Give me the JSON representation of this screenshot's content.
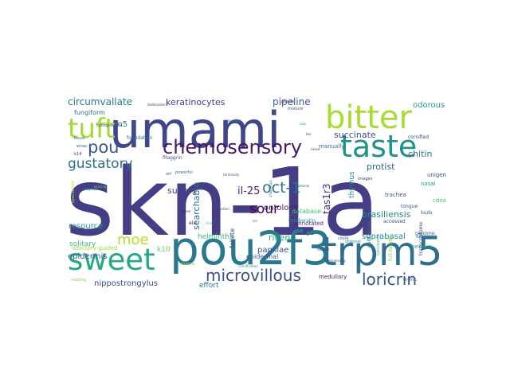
{
  "words": [
    {
      "text": "skn-1a",
      "color": "#433e85"
    },
    {
      "text": "umami",
      "color": "#3f4788"
    },
    {
      "text": "pou2f3",
      "color": "#2a788e"
    },
    {
      "text": "trpm5",
      "color": "#2e6f8e"
    },
    {
      "text": "bitter",
      "color": "#a8db34"
    },
    {
      "text": "taste",
      "color": "#21918c"
    },
    {
      "text": "sweet",
      "color": "#23a983"
    },
    {
      "text": "tuft",
      "color": "#a2da37"
    },
    {
      "text": "chemosensory",
      "color": "#481769"
    },
    {
      "text": "microvillous",
      "color": "#3c508b"
    },
    {
      "text": "pou",
      "color": "#39568c"
    },
    {
      "text": "loricrin",
      "color": "#3b528b"
    },
    {
      "text": "oct-1",
      "color": "#2c718e"
    },
    {
      "text": "sour",
      "color": "#440154"
    },
    {
      "text": "moe",
      "color": "#b5de2b"
    },
    {
      "text": "gustatory",
      "color": "#2d708e"
    },
    {
      "text": "keratinocytes",
      "color": "#433e85"
    },
    {
      "text": "circumvallate",
      "color": "#2a768e"
    },
    {
      "text": "pipeline",
      "color": "#365d8d"
    },
    {
      "text": "il-25",
      "color": "#481f70"
    },
    {
      "text": "tas1r3",
      "color": "#472d7b"
    },
    {
      "text": "succinate",
      "color": "#3e4a89"
    },
    {
      "text": "protist",
      "color": "#31688e"
    },
    {
      "text": "chitin",
      "color": "#2c728e"
    },
    {
      "text": "brasiliensis",
      "color": "#228c8d"
    },
    {
      "text": "odorous",
      "color": "#1f9e89"
    },
    {
      "text": "searchable",
      "color": "#2e6e8e"
    },
    {
      "text": "ontology",
      "color": "#48186a"
    },
    {
      "text": "sucnr1",
      "color": "#404688"
    },
    {
      "text": "riken",
      "color": "#25ac82"
    },
    {
      "text": "papillae",
      "color": "#3b528b"
    },
    {
      "text": "suprabasal",
      "color": "#24878e"
    },
    {
      "text": "resource",
      "color": "#1e9c89"
    },
    {
      "text": "solitary",
      "color": "#3dbc74"
    },
    {
      "text": "epidermis",
      "color": "#355f8d"
    },
    {
      "text": "helminths",
      "color": "#3aba76"
    },
    {
      "text": "nippostrongylus",
      "color": "#3e4989"
    },
    {
      "text": "effort",
      "color": "#2c738e"
    },
    {
      "text": "m5",
      "color": "#2d718e"
    },
    {
      "text": "k10",
      "color": "#6ccd5a"
    },
    {
      "text": "foliate",
      "color": "#3b518b"
    },
    {
      "text": "thymus",
      "color": "#24878e"
    },
    {
      "text": "fungiform",
      "color": "#2a768e"
    },
    {
      "text": "epidermal",
      "color": "#38598c"
    },
    {
      "text": "database",
      "color": "#40bd72"
    },
    {
      "text": "annotated",
      "color": "#482878"
    },
    {
      "text": "medullary",
      "color": "#482173"
    },
    {
      "text": "manually",
      "color": "#2d708e"
    },
    {
      "text": "trachea",
      "color": "#3b518b"
    },
    {
      "text": "nasal",
      "color": "#1fa088"
    },
    {
      "text": "cdnas",
      "color": "#4ac16d"
    },
    {
      "text": "unigene",
      "color": "#39568c"
    },
    {
      "text": "keratin",
      "color": "#21a685"
    },
    {
      "text": "genome",
      "color": "#31688e"
    },
    {
      "text": "transcriptome",
      "color": "#3f4889"
    },
    {
      "text": "full-length",
      "color": "#7ad151"
    },
    {
      "text": "epithelium",
      "color": "#2a768e"
    },
    {
      "text": "cytokeratin",
      "color": "#228d8d"
    },
    {
      "text": "olfactory-guided",
      "color": "#a0da39"
    },
    {
      "text": "filaggrin",
      "color": "#3b528b"
    },
    {
      "text": "foundation",
      "color": "#2c728e"
    },
    {
      "text": "cornified",
      "color": "#3e4a89"
    },
    {
      "text": "ela",
      "color": "#481668"
    },
    {
      "text": "tongue",
      "color": "#3b528b"
    },
    {
      "text": "buds",
      "color": "#31688e"
    },
    {
      "text": "octamer",
      "color": "#2c718e"
    },
    {
      "text": "accessed",
      "color": "#3e4a89"
    },
    {
      "text": "clone",
      "color": "#2f6c8e"
    },
    {
      "text": "images",
      "color": "#453781"
    },
    {
      "text": "mixture",
      "color": "#3f4788"
    },
    {
      "text": "project",
      "color": "#24868e"
    },
    {
      "text": "reading",
      "color": "#89d548"
    },
    {
      "text": "strands",
      "color": "#95d840"
    },
    {
      "text": "orf",
      "color": "#3a548c"
    },
    {
      "text": "basal",
      "color": "#2a768e"
    },
    {
      "text": "emac",
      "color": "#33638d"
    },
    {
      "text": "specialized",
      "color": "#bddf26"
    },
    {
      "text": "k14",
      "color": "#482475"
    },
    {
      "text": "powerful",
      "color": "#2c728e"
    },
    {
      "text": "thymic",
      "color": "#2a778e"
    },
    {
      "text": "dodecameric",
      "color": "#472e7c"
    },
    {
      "text": "hydrogenosome",
      "color": "#443983"
    },
    {
      "text": "splicing",
      "color": "#6ece58"
    },
    {
      "text": "cholinergic",
      "color": "#2f6b8e"
    },
    {
      "text": "terminally",
      "color": "#3a548c"
    },
    {
      "text": "hybridization",
      "color": "#29af7f"
    },
    {
      "text": "channel",
      "color": "#24878e"
    },
    {
      "text": "detection",
      "color": "#46337f"
    },
    {
      "text": "cornification",
      "color": "#21918c"
    },
    {
      "text": "cilia",
      "color": "#3dbc74"
    },
    {
      "text": "gene",
      "color": "#482878"
    },
    {
      "text": "nucleus",
      "color": "#3e4989"
    },
    {
      "text": "tastants",
      "color": "#31688e"
    },
    {
      "text": "regulating",
      "color": "#2a768e"
    },
    {
      "text": "proteins",
      "color": "#46085c"
    },
    {
      "text": "sequencing",
      "color": "#3f4788"
    },
    {
      "text": "cell",
      "color": "#2e6e8e"
    },
    {
      "text": "axis",
      "color": "#22a884"
    },
    {
      "text": "lsis",
      "color": "#482475"
    },
    {
      "text": "ion",
      "color": "#25838e"
    },
    {
      "text": "nerve",
      "color": "#472d7b"
    }
  ]
}
